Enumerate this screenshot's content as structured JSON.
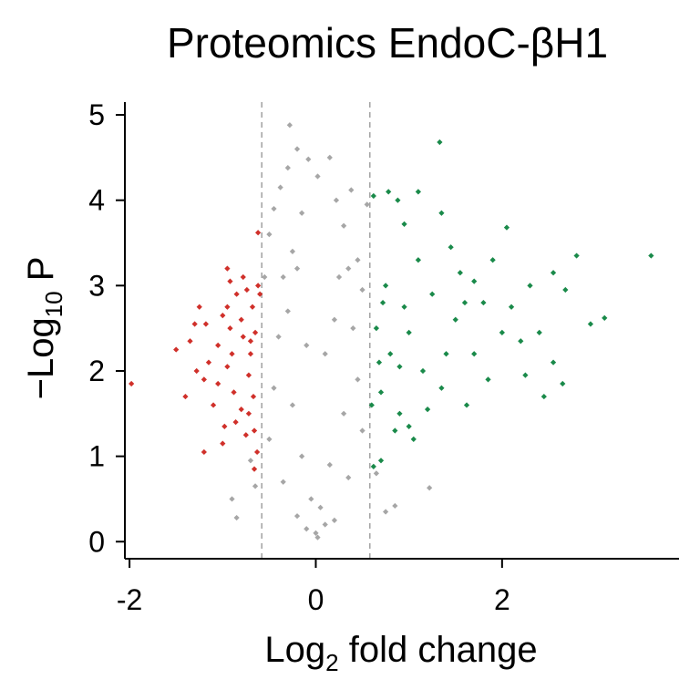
{
  "chart_data": {
    "type": "scatter",
    "title": "Proteomics EndoC-βH1",
    "xlabel": {
      "base": "Log",
      "sub": "2",
      "rest": " fold change"
    },
    "ylabel": {
      "prefix": "−Log",
      "sub": "10",
      "rest": " P"
    },
    "xlim": [
      -2.05,
      3.9
    ],
    "ylim": [
      -0.2,
      5.15
    ],
    "xticks": [
      {
        "value": -2,
        "label": "-2"
      },
      {
        "value": 0,
        "label": "0"
      },
      {
        "value": 2,
        "label": "2"
      }
    ],
    "yticks": [
      {
        "value": 0,
        "label": "0"
      },
      {
        "value": 1,
        "label": "1"
      },
      {
        "value": 2,
        "label": "2"
      },
      {
        "value": 3,
        "label": "3"
      },
      {
        "value": 4,
        "label": "4"
      },
      {
        "value": 5,
        "label": "5"
      }
    ],
    "thresholds": {
      "fold_change": [
        -0.58,
        0.58
      ]
    },
    "grid": false,
    "colors": {
      "down": "#d0302a",
      "not_significant": "#a6a6a6",
      "up": "#1a8a4a",
      "threshold_line": "#a6a6a6",
      "axis": "#000000"
    },
    "series": [
      {
        "key": "not_significant",
        "points": [
          [
            -0.28,
            4.88
          ],
          [
            -0.2,
            4.6
          ],
          [
            -0.08,
            4.48
          ],
          [
            0.15,
            4.5
          ],
          [
            -0.3,
            4.38
          ],
          [
            0.02,
            4.28
          ],
          [
            -0.38,
            4.15
          ],
          [
            0.22,
            4.0
          ],
          [
            0.38,
            4.12
          ],
          [
            -0.45,
            3.9
          ],
          [
            -0.15,
            3.85
          ],
          [
            0.3,
            3.7
          ],
          [
            -0.5,
            3.6
          ],
          [
            0.55,
            3.95
          ],
          [
            -0.25,
            3.4
          ],
          [
            0.45,
            3.3
          ],
          [
            -0.55,
            3.1
          ],
          [
            0.5,
            2.95
          ],
          [
            -0.9,
            0.5
          ],
          [
            -0.65,
            0.65
          ],
          [
            -0.7,
            0.95
          ],
          [
            1.22,
            0.63
          ],
          [
            0.75,
            0.35
          ],
          [
            -0.85,
            0.28
          ],
          [
            0.85,
            0.42
          ],
          [
            0.65,
            0.8
          ],
          [
            -0.35,
            3.1
          ],
          [
            -0.2,
            3.2
          ],
          [
            0.25,
            3.1
          ],
          [
            0.35,
            3.2
          ],
          [
            -0.3,
            2.7
          ],
          [
            0.2,
            2.6
          ],
          [
            -0.4,
            2.4
          ],
          [
            0.4,
            2.5
          ],
          [
            -0.1,
            2.3
          ],
          [
            0.1,
            2.2
          ],
          [
            -0.45,
            1.8
          ],
          [
            0.45,
            1.9
          ],
          [
            -0.25,
            1.6
          ],
          [
            0.3,
            1.5
          ],
          [
            -0.5,
            1.2
          ],
          [
            0.5,
            1.3
          ],
          [
            -0.15,
            1.0
          ],
          [
            0.15,
            0.9
          ],
          [
            -0.35,
            0.7
          ],
          [
            0.35,
            0.75
          ],
          [
            -0.05,
            0.5
          ],
          [
            0.05,
            0.4
          ],
          [
            -0.2,
            0.3
          ],
          [
            0.2,
            0.25
          ],
          [
            0.0,
            0.1
          ],
          [
            -0.1,
            0.15
          ],
          [
            0.1,
            0.2
          ],
          [
            0.02,
            0.05
          ]
        ]
      },
      {
        "key": "down",
        "points": [
          [
            -1.98,
            1.85
          ],
          [
            -1.5,
            2.25
          ],
          [
            -1.4,
            1.7
          ],
          [
            -1.2,
            1.05
          ],
          [
            -1.3,
            2.55
          ],
          [
            -1.25,
            2.75
          ],
          [
            -0.95,
            3.2
          ],
          [
            -0.92,
            3.05
          ],
          [
            -0.62,
            3.62
          ],
          [
            -0.78,
            2.4
          ],
          [
            -1.05,
            2.3
          ],
          [
            -0.88,
            1.75
          ],
          [
            -0.72,
            1.5
          ],
          [
            -0.98,
            1.35
          ],
          [
            -0.66,
            0.85
          ],
          [
            -1.15,
            2.1
          ],
          [
            -0.8,
            2.6
          ],
          [
            -0.7,
            2.2
          ],
          [
            -1.2,
            1.9
          ],
          [
            -0.95,
            2.05
          ],
          [
            -0.68,
            2.75
          ],
          [
            -0.85,
            2.9
          ],
          [
            -1.1,
            1.6
          ],
          [
            -0.75,
            1.25
          ],
          [
            -0.65,
            2.45
          ],
          [
            -0.9,
            2.2
          ],
          [
            -1.35,
            2.35
          ],
          [
            -0.62,
            3.0
          ],
          [
            -0.72,
            1.95
          ],
          [
            -1.0,
            2.65
          ],
          [
            -0.8,
            1.55
          ],
          [
            -1.05,
            1.85
          ],
          [
            -0.67,
            1.7
          ],
          [
            -0.92,
            2.5
          ],
          [
            -0.6,
            2.9
          ],
          [
            -1.28,
            2.0
          ],
          [
            -0.74,
            2.95
          ],
          [
            -0.86,
            1.4
          ],
          [
            -0.63,
            1.05
          ],
          [
            -1.0,
            1.15
          ],
          [
            -0.7,
            2.35
          ],
          [
            -0.95,
            2.75
          ],
          [
            -0.78,
            3.1
          ],
          [
            -1.18,
            2.55
          ],
          [
            -0.66,
            1.3
          ]
        ]
      },
      {
        "key": "up",
        "points": [
          [
            1.33,
            4.68
          ],
          [
            0.62,
            4.05
          ],
          [
            0.78,
            4.1
          ],
          [
            1.1,
            4.1
          ],
          [
            0.88,
            4.0
          ],
          [
            0.95,
            3.72
          ],
          [
            1.35,
            3.85
          ],
          [
            2.05,
            3.68
          ],
          [
            1.1,
            3.3
          ],
          [
            1.7,
            3.05
          ],
          [
            2.8,
            3.35
          ],
          [
            3.6,
            3.35
          ],
          [
            3.1,
            2.62
          ],
          [
            2.68,
            2.95
          ],
          [
            2.55,
            2.1
          ],
          [
            2.45,
            1.7
          ],
          [
            2.65,
            1.85
          ],
          [
            2.95,
            2.55
          ],
          [
            2.2,
            2.35
          ],
          [
            1.15,
            2.0
          ],
          [
            1.35,
            1.8
          ],
          [
            1.62,
            1.6
          ],
          [
            1.05,
            1.2
          ],
          [
            0.7,
            0.95
          ],
          [
            0.62,
            0.88
          ],
          [
            1.0,
            1.35
          ],
          [
            0.9,
            1.5
          ],
          [
            1.8,
            2.8
          ],
          [
            2.0,
            2.45
          ],
          [
            2.3,
            3.0
          ],
          [
            1.85,
            1.9
          ],
          [
            1.5,
            2.6
          ],
          [
            1.25,
            2.9
          ],
          [
            0.8,
            2.2
          ],
          [
            0.7,
            1.75
          ],
          [
            0.65,
            2.5
          ],
          [
            1.9,
            3.3
          ],
          [
            2.1,
            2.75
          ],
          [
            1.55,
            3.15
          ],
          [
            2.25,
            1.95
          ],
          [
            1.4,
            2.2
          ],
          [
            0.95,
            2.75
          ],
          [
            0.75,
            3.0
          ],
          [
            0.85,
            1.3
          ],
          [
            0.6,
            1.6
          ],
          [
            1.7,
            2.2
          ],
          [
            2.4,
            2.45
          ],
          [
            1.2,
            1.55
          ],
          [
            1.0,
            2.45
          ],
          [
            0.68,
            2.1
          ],
          [
            1.6,
            2.8
          ],
          [
            2.55,
            3.15
          ],
          [
            1.45,
            3.45
          ],
          [
            0.9,
            2.05
          ],
          [
            0.72,
            2.8
          ]
        ]
      }
    ]
  }
}
